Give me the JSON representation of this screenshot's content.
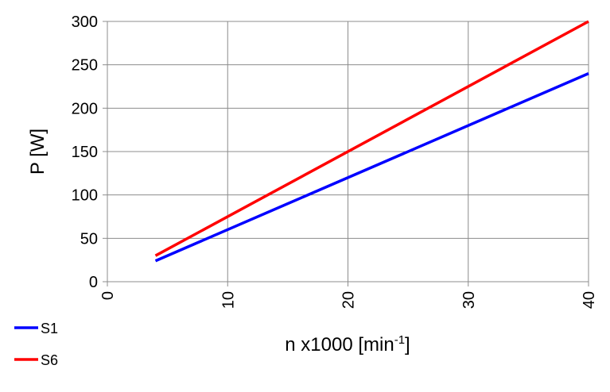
{
  "chart_data": {
    "type": "line",
    "ylabel": "P [W]",
    "xlabel_parts": [
      "n x1000 [min",
      "-1",
      "]"
    ],
    "x": [
      4,
      40
    ],
    "series": [
      {
        "name": "S1",
        "color": "#0000ff",
        "values": [
          24,
          240
        ]
      },
      {
        "name": "S6",
        "color": "#ff0000",
        "values": [
          30,
          300
        ]
      }
    ],
    "xlim": [
      0,
      40
    ],
    "xticks": [
      0,
      10,
      20,
      30,
      40
    ],
    "ylim": [
      0,
      300
    ],
    "yticks": [
      0,
      50,
      100,
      150,
      200,
      250,
      300
    ],
    "grid": true,
    "legend": "bottom-left"
  }
}
